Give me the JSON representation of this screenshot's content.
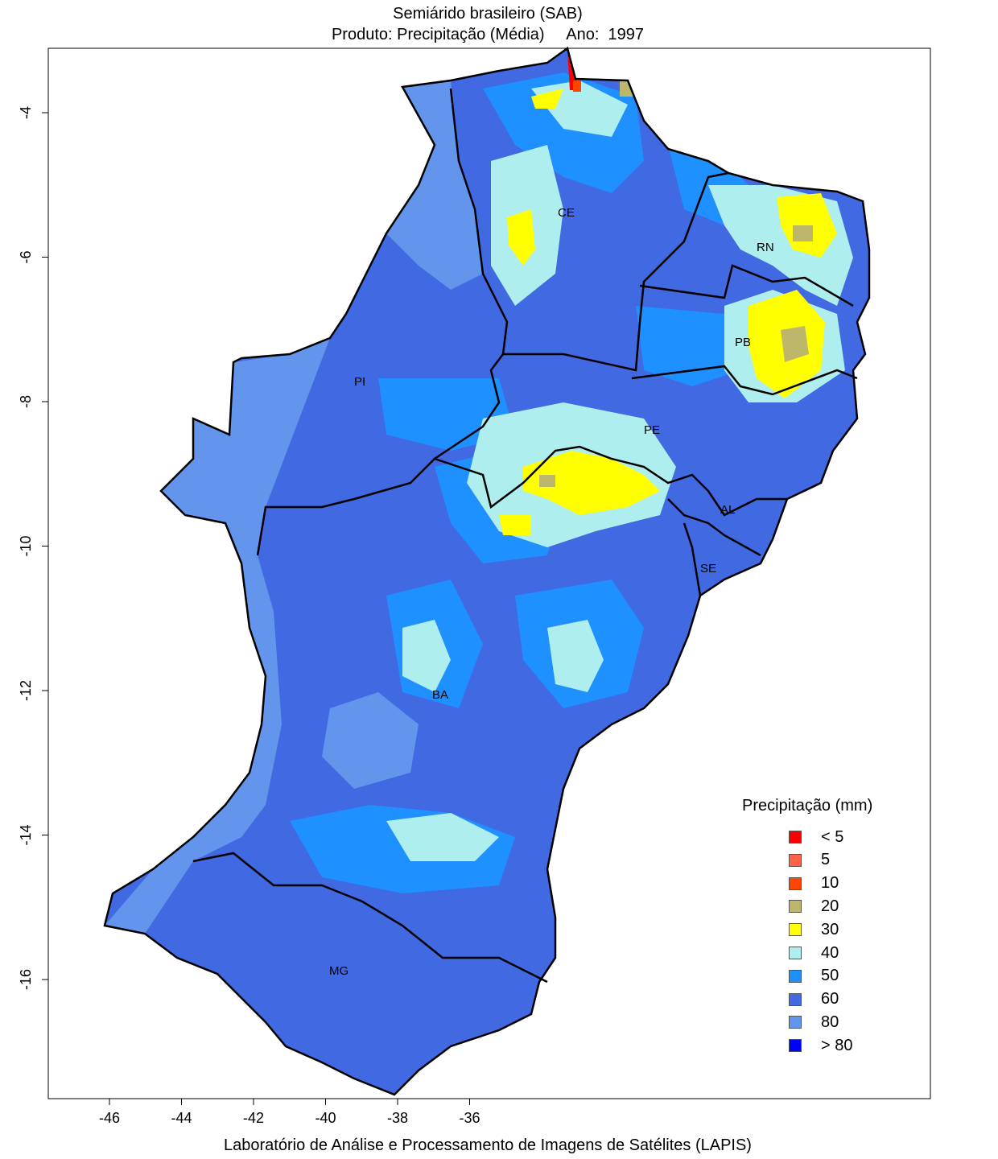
{
  "title_line1": "Semiárido brasileiro (SAB)",
  "title_product": "Produto: Precipitação (Média)",
  "title_year_label": "Ano:",
  "title_year": "1997",
  "credit": "Laboratório de Análise e Processamento de Imagens de Satélites (LAPIS)",
  "axes": {
    "x_ticks": [
      "-46",
      "-44",
      "-42",
      "-40",
      "-38",
      "-36"
    ],
    "y_ticks": [
      "-4",
      "-6",
      "-8",
      "-10",
      "-12",
      "-14",
      "-16"
    ]
  },
  "states": [
    {
      "abbr": "CE"
    },
    {
      "abbr": "RN"
    },
    {
      "abbr": "PB"
    },
    {
      "abbr": "PI"
    },
    {
      "abbr": "PE"
    },
    {
      "abbr": "AL"
    },
    {
      "abbr": "SE"
    },
    {
      "abbr": "BA"
    },
    {
      "abbr": "MG"
    }
  ],
  "legend": {
    "title": "Precipitação (mm)",
    "items": [
      {
        "label": "< 5",
        "color": "#ff0000"
      },
      {
        "label": "5",
        "color": "#ff6347"
      },
      {
        "label": "10",
        "color": "#ff4500"
      },
      {
        "label": "20",
        "color": "#bdb76b"
      },
      {
        "label": "30",
        "color": "#ffff00"
      },
      {
        "label": "40",
        "color": "#aeeeee"
      },
      {
        "label": "50",
        "color": "#1e90ff"
      },
      {
        "label": "60",
        "color": "#4169e1"
      },
      {
        "label": "80",
        "color": "#6495ed"
      },
      {
        "label": "> 80",
        "color": "#0000ff"
      }
    ]
  }
}
